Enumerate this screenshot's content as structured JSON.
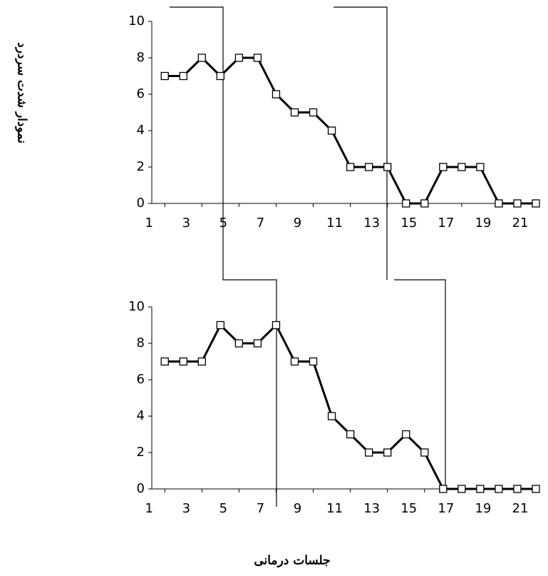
{
  "chart_data": [
    {
      "type": "line",
      "y_label": "نمودار شدت سردرد",
      "x": [
        1,
        2,
        3,
        4,
        5,
        6,
        7,
        8,
        9,
        10,
        11,
        12,
        13,
        14,
        15,
        16,
        17,
        18,
        19,
        20,
        21
      ],
      "values": [
        7,
        7,
        8,
        7,
        8,
        8,
        6,
        5,
        5,
        4,
        2,
        2,
        2,
        0,
        0,
        2,
        2,
        2,
        0,
        0,
        0
      ],
      "color": "#000000",
      "xlim": [
        0.3,
        21
      ],
      "xticks": [
        1,
        3,
        5,
        7,
        9,
        11,
        13,
        15,
        17,
        19,
        21
      ],
      "ylim": [
        0,
        10
      ],
      "yticks": [
        0,
        2,
        4,
        6,
        8,
        10
      ]
    },
    {
      "type": "line",
      "x_label": "جلسات درمانی",
      "x": [
        1,
        2,
        3,
        4,
        5,
        6,
        7,
        8,
        9,
        10,
        11,
        12,
        13,
        14,
        15,
        16,
        17,
        18,
        19,
        20,
        21
      ],
      "values": [
        7,
        7,
        7,
        9,
        8,
        8,
        9,
        7,
        7,
        4,
        3,
        2,
        2,
        3,
        2,
        0,
        0,
        0,
        0,
        0,
        0
      ],
      "color": "#000000",
      "xlim": [
        0.3,
        21
      ],
      "xticks": [
        1,
        3,
        5,
        7,
        9,
        11,
        13,
        15,
        17,
        19,
        21
      ],
      "ylim": [
        0,
        10
      ],
      "yticks": [
        0,
        2,
        4,
        6,
        8,
        10
      ]
    }
  ]
}
